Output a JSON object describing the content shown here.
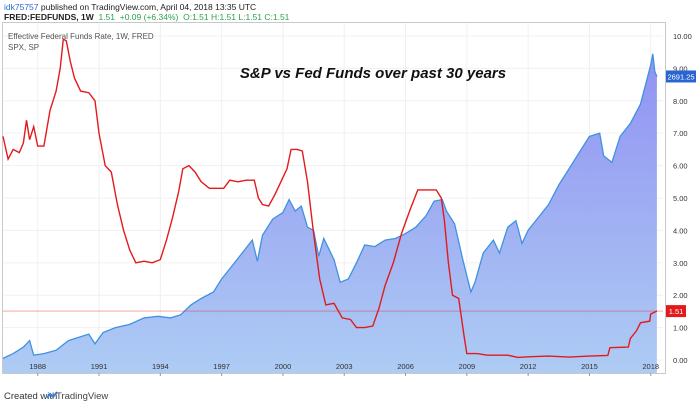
{
  "header": {
    "user": "idk75757",
    "published": "published on TradingView.com, April 04, 2018 13:35 UTC",
    "symbol": "FRED:FEDFUNDS, 1W",
    "last": "1.51",
    "change": "+0.09 (+6.34%)",
    "ohlc": "O:1.51 H:1.51 L:1.51 C:1.51"
  },
  "footer": {
    "created_with": "Created with",
    "brand": "TradingView"
  },
  "chart_data": {
    "type": "line",
    "title": "S&P vs Fed Funds over past 30 years",
    "legend": [
      "Effective Federal Funds Rate, 1W, FRED",
      "SPX, SP"
    ],
    "x_tick_labels": [
      "1988",
      "1991",
      "1994",
      "1997",
      "2000",
      "2003",
      "2006",
      "2009",
      "2012",
      "2015",
      "2018"
    ],
    "y_tick_labels": [
      "0.00",
      "1.00",
      "2.00",
      "3.00",
      "4.00",
      "5.00",
      "6.00",
      "7.00",
      "8.00",
      "9.00",
      "10.00"
    ],
    "xlim": [
      1986.3,
      2018.6
    ],
    "ylim": [
      -0.4,
      10.4
    ],
    "colors": {
      "fed": "#e31a1c",
      "spx_line": "#3f92e0",
      "spx_fill_top": "#8b8cf2",
      "spx_fill_bottom": "#a9c9f3",
      "spx_label": "#2a64d0",
      "fed_label": "#e31a1c"
    },
    "series": [
      {
        "name": "Effective Federal Funds Rate, 1W, FRED",
        "value_label": "1.51",
        "points": [
          [
            1986.3,
            6.9
          ],
          [
            1986.55,
            6.2
          ],
          [
            1986.8,
            6.5
          ],
          [
            1987.1,
            6.4
          ],
          [
            1987.3,
            6.7
          ],
          [
            1987.45,
            7.4
          ],
          [
            1987.6,
            6.8
          ],
          [
            1987.8,
            7.2
          ],
          [
            1988.0,
            6.6
          ],
          [
            1988.3,
            6.6
          ],
          [
            1988.6,
            7.7
          ],
          [
            1988.9,
            8.3
          ],
          [
            1989.1,
            9.0
          ],
          [
            1989.25,
            9.9
          ],
          [
            1989.4,
            9.85
          ],
          [
            1989.6,
            9.2
          ],
          [
            1989.8,
            8.7
          ],
          [
            1990.1,
            8.3
          ],
          [
            1990.5,
            8.25
          ],
          [
            1990.8,
            8.0
          ],
          [
            1991.0,
            7.0
          ],
          [
            1991.3,
            6.0
          ],
          [
            1991.6,
            5.8
          ],
          [
            1991.9,
            4.8
          ],
          [
            1992.2,
            4.0
          ],
          [
            1992.5,
            3.4
          ],
          [
            1992.8,
            3.0
          ],
          [
            1993.2,
            3.05
          ],
          [
            1993.6,
            3.0
          ],
          [
            1994.0,
            3.1
          ],
          [
            1994.3,
            3.7
          ],
          [
            1994.6,
            4.4
          ],
          [
            1994.9,
            5.2
          ],
          [
            1995.1,
            5.9
          ],
          [
            1995.4,
            6.0
          ],
          [
            1995.7,
            5.8
          ],
          [
            1996.0,
            5.5
          ],
          [
            1996.4,
            5.3
          ],
          [
            1996.8,
            5.3
          ],
          [
            1997.1,
            5.3
          ],
          [
            1997.4,
            5.55
          ],
          [
            1997.8,
            5.5
          ],
          [
            1998.2,
            5.55
          ],
          [
            1998.6,
            5.55
          ],
          [
            1998.8,
            5.0
          ],
          [
            1999.0,
            4.8
          ],
          [
            1999.3,
            4.75
          ],
          [
            1999.6,
            5.1
          ],
          [
            1999.9,
            5.5
          ],
          [
            2000.2,
            5.9
          ],
          [
            2000.4,
            6.5
          ],
          [
            2000.7,
            6.5
          ],
          [
            2000.95,
            6.45
          ],
          [
            2001.2,
            5.5
          ],
          [
            2001.5,
            3.9
          ],
          [
            2001.8,
            2.5
          ],
          [
            2002.1,
            1.7
          ],
          [
            2002.5,
            1.75
          ],
          [
            2002.9,
            1.3
          ],
          [
            2003.3,
            1.25
          ],
          [
            2003.6,
            1.0
          ],
          [
            2004.0,
            1.0
          ],
          [
            2004.4,
            1.05
          ],
          [
            2004.7,
            1.6
          ],
          [
            2005.0,
            2.3
          ],
          [
            2005.4,
            3.0
          ],
          [
            2005.8,
            3.9
          ],
          [
            2006.2,
            4.6
          ],
          [
            2006.6,
            5.25
          ],
          [
            2007.0,
            5.25
          ],
          [
            2007.5,
            5.25
          ],
          [
            2007.75,
            5.0
          ],
          [
            2007.9,
            4.3
          ],
          [
            2008.1,
            3.0
          ],
          [
            2008.3,
            2.0
          ],
          [
            2008.6,
            1.9
          ],
          [
            2008.85,
            0.8
          ],
          [
            2009.0,
            0.2
          ],
          [
            2009.5,
            0.2
          ],
          [
            2010.0,
            0.15
          ],
          [
            2011.0,
            0.15
          ],
          [
            2011.5,
            0.08
          ],
          [
            2012.0,
            0.1
          ],
          [
            2013.0,
            0.12
          ],
          [
            2014.0,
            0.09
          ],
          [
            2015.0,
            0.12
          ],
          [
            2015.9,
            0.14
          ],
          [
            2016.0,
            0.38
          ],
          [
            2016.9,
            0.4
          ],
          [
            2017.0,
            0.66
          ],
          [
            2017.3,
            0.9
          ],
          [
            2017.5,
            1.15
          ],
          [
            2017.95,
            1.2
          ],
          [
            2018.0,
            1.42
          ],
          [
            2018.3,
            1.51
          ]
        ]
      },
      {
        "name": "SPX, SP",
        "value_label": "2691.25",
        "points": [
          [
            1986.3,
            0.05
          ],
          [
            1986.8,
            0.2
          ],
          [
            1987.3,
            0.4
          ],
          [
            1987.6,
            0.6
          ],
          [
            1987.8,
            0.15
          ],
          [
            1988.3,
            0.2
          ],
          [
            1988.9,
            0.3
          ],
          [
            1989.5,
            0.6
          ],
          [
            1990.0,
            0.7
          ],
          [
            1990.5,
            0.8
          ],
          [
            1990.8,
            0.5
          ],
          [
            1991.2,
            0.85
          ],
          [
            1991.8,
            1.0
          ],
          [
            1992.5,
            1.1
          ],
          [
            1993.2,
            1.3
          ],
          [
            1993.9,
            1.35
          ],
          [
            1994.5,
            1.3
          ],
          [
            1995.0,
            1.4
          ],
          [
            1995.5,
            1.7
          ],
          [
            1996.0,
            1.9
          ],
          [
            1996.6,
            2.1
          ],
          [
            1997.0,
            2.5
          ],
          [
            1997.5,
            2.9
          ],
          [
            1998.0,
            3.3
          ],
          [
            1998.5,
            3.7
          ],
          [
            1998.75,
            3.05
          ],
          [
            1999.0,
            3.85
          ],
          [
            1999.5,
            4.35
          ],
          [
            2000.0,
            4.55
          ],
          [
            2000.3,
            4.95
          ],
          [
            2000.6,
            4.6
          ],
          [
            2000.9,
            4.75
          ],
          [
            2001.2,
            4.1
          ],
          [
            2001.5,
            4.0
          ],
          [
            2001.75,
            3.2
          ],
          [
            2002.0,
            3.75
          ],
          [
            2002.5,
            3.1
          ],
          [
            2002.8,
            2.4
          ],
          [
            2003.2,
            2.5
          ],
          [
            2003.6,
            3.0
          ],
          [
            2004.0,
            3.55
          ],
          [
            2004.5,
            3.5
          ],
          [
            2005.0,
            3.7
          ],
          [
            2005.5,
            3.75
          ],
          [
            2006.0,
            3.9
          ],
          [
            2006.5,
            4.1
          ],
          [
            2007.0,
            4.45
          ],
          [
            2007.4,
            4.9
          ],
          [
            2007.8,
            4.95
          ],
          [
            2008.0,
            4.6
          ],
          [
            2008.4,
            4.2
          ],
          [
            2008.8,
            3.1
          ],
          [
            2009.2,
            2.1
          ],
          [
            2009.4,
            2.4
          ],
          [
            2009.8,
            3.3
          ],
          [
            2010.3,
            3.7
          ],
          [
            2010.6,
            3.3
          ],
          [
            2011.0,
            4.1
          ],
          [
            2011.4,
            4.3
          ],
          [
            2011.7,
            3.6
          ],
          [
            2012.0,
            4.0
          ],
          [
            2012.5,
            4.4
          ],
          [
            2013.0,
            4.8
          ],
          [
            2013.5,
            5.4
          ],
          [
            2014.0,
            5.9
          ],
          [
            2014.5,
            6.4
          ],
          [
            2015.0,
            6.9
          ],
          [
            2015.5,
            7.0
          ],
          [
            2015.7,
            6.3
          ],
          [
            2016.1,
            6.1
          ],
          [
            2016.5,
            6.9
          ],
          [
            2017.0,
            7.3
          ],
          [
            2017.5,
            7.9
          ],
          [
            2018.0,
            9.1
          ],
          [
            2018.1,
            9.45
          ],
          [
            2018.2,
            8.9
          ],
          [
            2018.3,
            8.75
          ]
        ]
      }
    ]
  }
}
